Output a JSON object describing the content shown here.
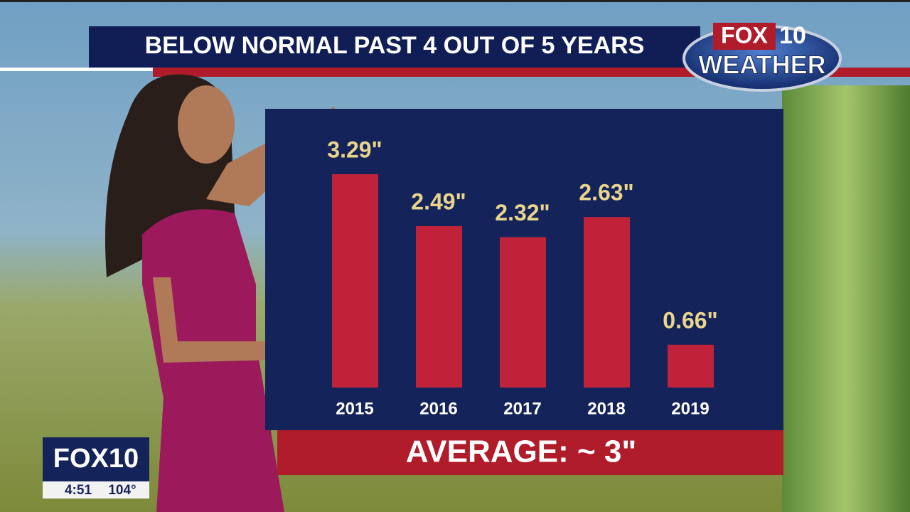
{
  "chart_data": {
    "type": "bar",
    "title": "BELOW NORMAL PAST 4 OUT OF 5 YEARS",
    "categories": [
      "2015",
      "2016",
      "2017",
      "2018",
      "2019"
    ],
    "values": [
      3.29,
      2.49,
      2.32,
      2.63,
      0.66
    ],
    "value_labels": [
      "3.29\"",
      "2.49\"",
      "2.32\"",
      "2.63\"",
      "0.66\""
    ],
    "color": "#c0223a",
    "annotation": "AVERAGE: ~ 3\""
  },
  "logo": {
    "brand": "FOX",
    "channel": "10",
    "label": "WEATHER"
  },
  "bug": {
    "station": "FOX10",
    "time": "4:51",
    "temperature": "104°"
  }
}
